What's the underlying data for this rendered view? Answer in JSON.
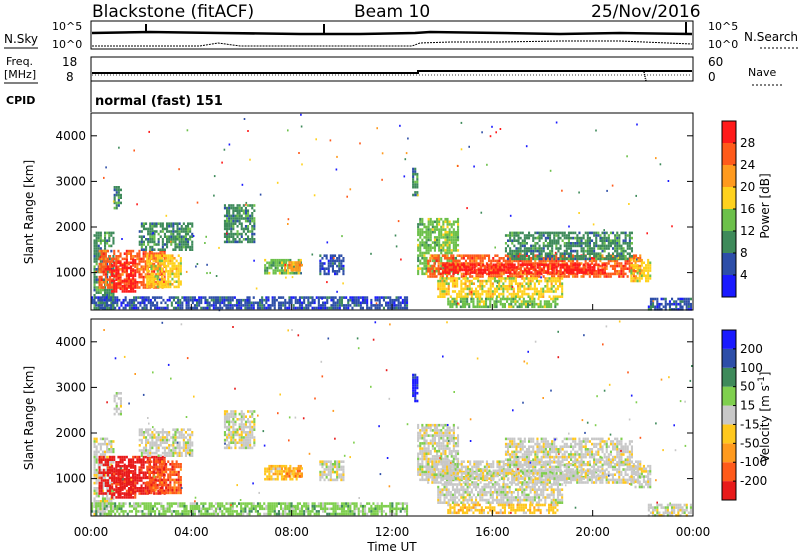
{
  "header": {
    "site": "Blackstone (fitACF)",
    "beam": "Beam 10",
    "date": "25/Nov/2016"
  },
  "noise_panel": {
    "left_label": "N.Sky",
    "right_label": "N.Search",
    "ticks_left": [
      "10^5",
      "10^0"
    ],
    "ticks_right": [
      "10^5",
      "10^0"
    ]
  },
  "freq_panel": {
    "left_label": "Freq.",
    "left_unit": "[MHz]",
    "right_label": "Nave",
    "ticks_left": [
      "18",
      "8"
    ],
    "ticks_right": [
      "60",
      "0"
    ]
  },
  "cpid_panel": {
    "label": "CPID",
    "value": "normal (fast) 151"
  },
  "axes": {
    "ylabel": "Slant Range [km]",
    "xlabel": "Time UT",
    "yticks": [
      1000,
      2000,
      3000,
      4000
    ],
    "xticks": [
      "00:00",
      "04:00",
      "08:00",
      "12:00",
      "16:00",
      "20:00",
      "00:00"
    ]
  },
  "colors": {
    "power": [
      "#1a1aff",
      "#2d4ea8",
      "#3e8a5a",
      "#6cc04a",
      "#ffd21e",
      "#ff9a1e",
      "#ff5a1a",
      "#ff1a1a"
    ],
    "velocity": [
      "#e81a1a",
      "#ff5a1a",
      "#ff9a1e",
      "#ffc81e",
      "#c8c8c8",
      "#7fcf4e",
      "#3e8a5a",
      "#2d4ea8",
      "#1a1aff"
    ]
  },
  "chart_data": [
    {
      "type": "heatmap",
      "name": "power",
      "colorbar_label": "Power [dB]",
      "colorbar_ticks": [
        "4",
        "8",
        "12",
        "16",
        "20",
        "24",
        "28"
      ],
      "ylim": [
        180,
        4500
      ],
      "xlim_hours": [
        0,
        24
      ]
    },
    {
      "type": "heatmap",
      "name": "velocity",
      "colorbar_label": "Velocity [m s^-1]",
      "colorbar_ticks": [
        "-200",
        "-100",
        "-50",
        "-15",
        "15",
        "50",
        "100",
        "200"
      ],
      "ylim": [
        180,
        4500
      ],
      "xlim_hours": [
        0,
        24
      ]
    }
  ]
}
